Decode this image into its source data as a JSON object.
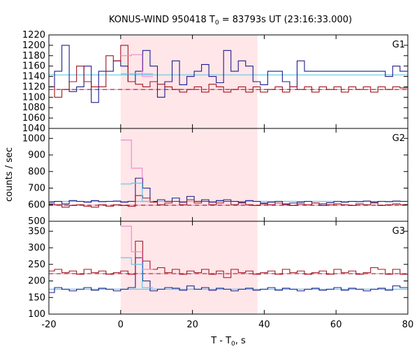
{
  "chart_data": {
    "type": "line",
    "title": "KONUS-WIND 950418 T",
    "title_sub": "0",
    "title_rest": " = 83793s UT (23:16:33.000)",
    "xlabel": "T - T",
    "xlabel_sub": "0",
    "xlabel_rest": ", s",
    "ylabel": "counts / sec",
    "xlim": [
      -20,
      80
    ],
    "xticks": [
      -20,
      0,
      20,
      40,
      60,
      80
    ],
    "highlight": {
      "x0": 0,
      "x1": 38.1,
      "color": "#ffe6e9"
    },
    "bin_width": 2.048,
    "x_start": -20.48,
    "colors": {
      "blue": "#1c1c8c",
      "red": "#a0141e",
      "pink": "#f08ccd",
      "cyan": "#64c8e6",
      "dash": "#b41e28"
    },
    "panels": [
      {
        "name": "G1",
        "ylim": [
          1040,
          1220
        ],
        "yticks": [
          1040,
          1060,
          1080,
          1100,
          1120,
          1140,
          1160,
          1180,
          1200,
          1220
        ],
        "blue_bg": 1143,
        "red_bg": 1115,
        "pink_segment": {
          "start": 0,
          "values": [
            1180,
            1182,
            1140
          ]
        },
        "cyan_segment": {
          "start": 0,
          "values": [
            1145,
            1145,
            1145
          ]
        },
        "blue": [
          1120,
          1150,
          1200,
          1111,
          1120,
          1160,
          1090,
          1150,
          1150,
          1170,
          1160,
          1130,
          1150,
          1190,
          1160,
          1100,
          1130,
          1170,
          1124,
          1140,
          1150,
          1163,
          1140,
          1128,
          1190,
          1150,
          1170,
          1160,
          1130,
          1124,
          1150,
          1150,
          1130,
          1120,
          1170,
          1150,
          1150,
          1150,
          1150,
          1150,
          1150,
          1150,
          1150,
          1150,
          1150,
          1150,
          1140,
          1160,
          1150
        ],
        "red": [
          1120,
          1100,
          1115,
          1130,
          1160,
          1130,
          1120,
          1120,
          1180,
          1170,
          1200,
          1130,
          1125,
          1120,
          1130,
          1125,
          1120,
          1115,
          1110,
          1115,
          1120,
          1110,
          1125,
          1120,
          1110,
          1115,
          1120,
          1110,
          1120,
          1110,
          1115,
          1120,
          1110,
          1120,
          1115,
          1120,
          1110,
          1120,
          1115,
          1120,
          1110,
          1120,
          1115,
          1120,
          1110,
          1120,
          1115,
          1120,
          1118
        ]
      },
      {
        "name": "G2",
        "ylim": [
          500,
          1060
        ],
        "yticks": [
          500,
          600,
          700,
          800,
          900,
          1000
        ],
        "blue_bg": 620,
        "red_bg": 597,
        "pink_segment": {
          "start": 0,
          "values": [
            990,
            820,
            620
          ]
        },
        "cyan_segment": {
          "start": 0,
          "values": [
            725,
            730,
            620
          ]
        },
        "blue": [
          615,
          620,
          605,
          625,
          620,
          615,
          625,
          618,
          620,
          622,
          615,
          620,
          760,
          700,
          620,
          630,
          620,
          640,
          615,
          650,
          620,
          630,
          615,
          625,
          630,
          620,
          615,
          625,
          620,
          610,
          615,
          620,
          605,
          610,
          615,
          620,
          610,
          605,
          612,
          620,
          615,
          620,
          618,
          622,
          615,
          620,
          618,
          622,
          620
        ],
        "red": [
          605,
          600,
          585,
          595,
          600,
          590,
          585,
          600,
          590,
          600,
          595,
          590,
          655,
          640,
          615,
          600,
          610,
          620,
          600,
          630,
          610,
          620,
          600,
          610,
          620,
          600,
          610,
          600,
          595,
          605,
          600,
          610,
          600,
          595,
          605,
          600,
          610,
          595,
          600,
          605,
          600,
          595,
          605,
          600,
          610,
          595,
          600,
          605,
          600
        ]
      },
      {
        "name": "G3",
        "ylim": [
          100,
          380
        ],
        "yticks": [
          100,
          150,
          200,
          250,
          300,
          350
        ],
        "blue_bg": 175,
        "red_bg": 222,
        "pink_segment": {
          "start": 0,
          "values": [
            365,
            288,
            235
          ]
        },
        "cyan_segment": {
          "start": 0,
          "values": [
            270,
            250,
            180
          ]
        },
        "blue": [
          165,
          180,
          175,
          170,
          175,
          180,
          172,
          178,
          175,
          170,
          175,
          180,
          270,
          200,
          170,
          175,
          180,
          178,
          172,
          185,
          175,
          180,
          172,
          178,
          175,
          170,
          175,
          178,
          172,
          175,
          180,
          172,
          178,
          175,
          170,
          175,
          178,
          172,
          175,
          180,
          172,
          178,
          175,
          170,
          175,
          178,
          172,
          185,
          180
        ],
        "red": [
          230,
          235,
          225,
          230,
          220,
          235,
          225,
          230,
          220,
          225,
          230,
          220,
          320,
          260,
          235,
          240,
          225,
          235,
          220,
          230,
          225,
          235,
          220,
          230,
          210,
          235,
          225,
          230,
          220,
          225,
          230,
          220,
          235,
          225,
          230,
          220,
          225,
          230,
          220,
          235,
          225,
          230,
          220,
          225,
          240,
          235,
          220,
          235,
          220
        ]
      }
    ]
  }
}
